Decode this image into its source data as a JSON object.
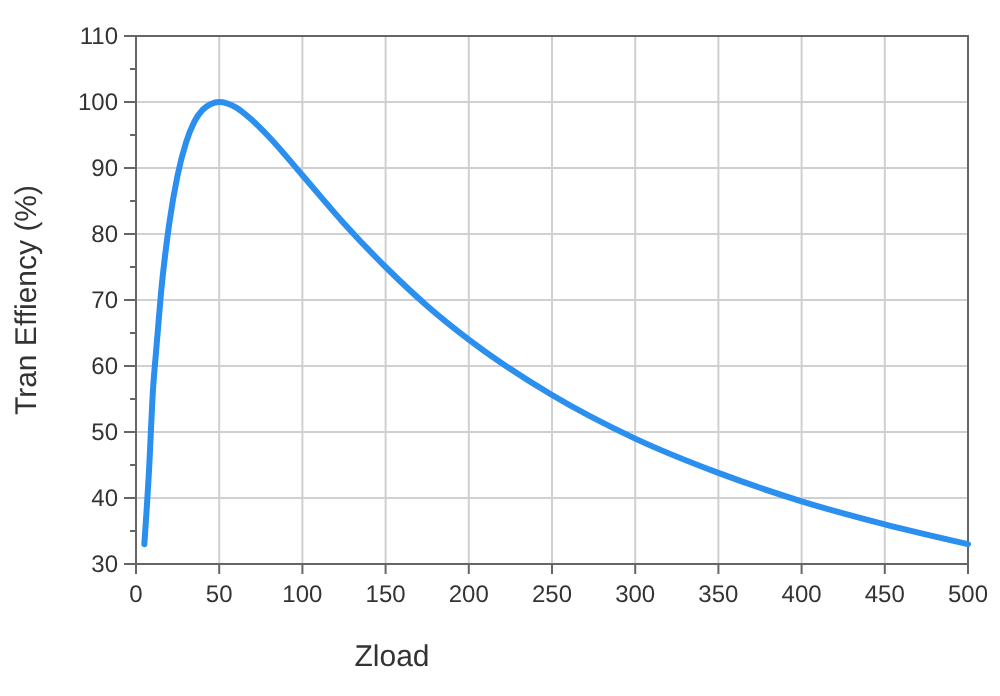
{
  "chart_data": {
    "type": "line",
    "xlabel": "Zload",
    "ylabel": "Tran Effiency (%)",
    "x": [
      5,
      8,
      10,
      12,
      15,
      20,
      25,
      30,
      35,
      40,
      45,
      50,
      60,
      70,
      80,
      100,
      125,
      150,
      175,
      200,
      250,
      300,
      350,
      400,
      450,
      500
    ],
    "series": [
      {
        "color": "#2b8ff0",
        "values": [
          33,
          45,
          55.6,
          62,
          71,
          81.6,
          88.9,
          93.8,
          97,
          98.8,
          99.7,
          100,
          99.2,
          97.2,
          94.7,
          88.9,
          81.6,
          75,
          69.1,
          64,
          55.6,
          49,
          43.8,
          39.5,
          36,
          33
        ]
      }
    ],
    "xlim": [
      0,
      500
    ],
    "xticks": [
      0,
      50,
      100,
      150,
      200,
      250,
      300,
      350,
      400,
      450,
      500
    ],
    "ylim": [
      30,
      110
    ],
    "yticks": [
      30,
      {
        "value": 35,
        "label": null
      },
      40,
      {
        "value": 45,
        "label": null
      },
      50,
      {
        "value": 55,
        "label": null
      },
      60,
      {
        "value": 65,
        "label": null
      },
      70,
      {
        "value": 75,
        "label": null
      },
      80,
      {
        "value": 85,
        "label": null
      },
      90,
      {
        "value": 95,
        "label": null
      },
      100,
      {
        "value": 105,
        "label": null
      },
      110
    ],
    "grid": true,
    "marker": "none",
    "line_style": "solid"
  }
}
